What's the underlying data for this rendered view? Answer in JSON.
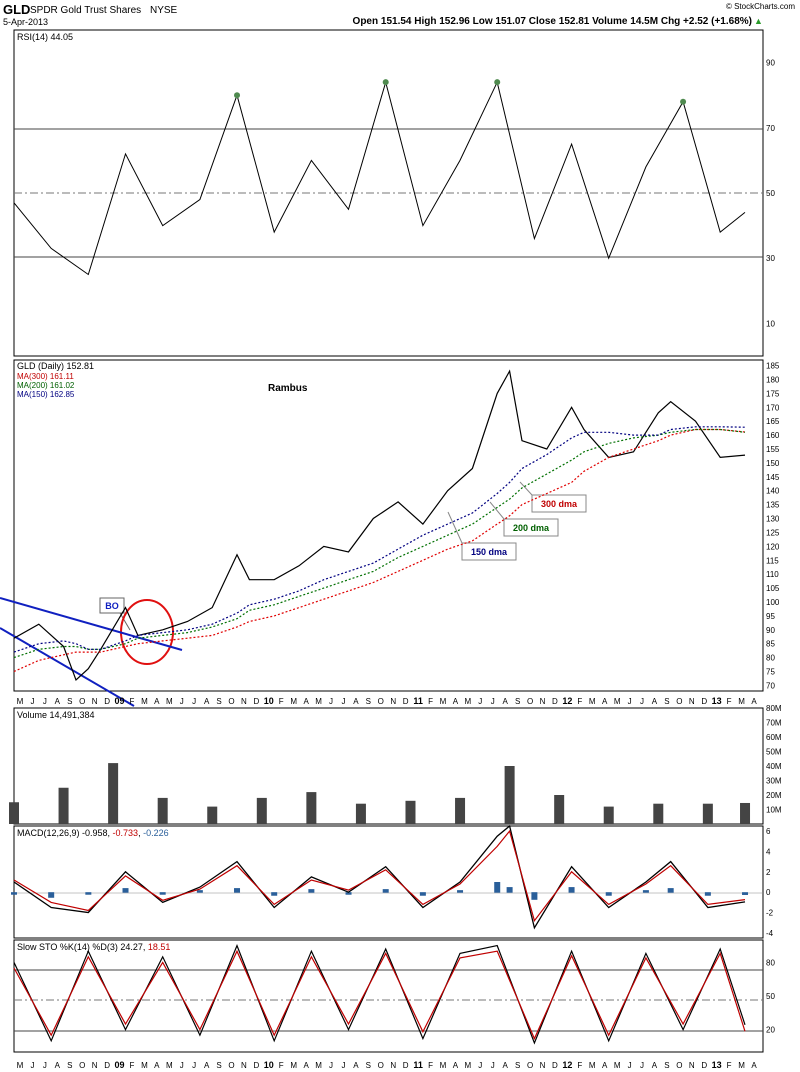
{
  "header": {
    "symbol": "GLD",
    "name": "SPDR Gold Trust Shares",
    "exchange": "NYSE",
    "date": "5-Apr-2013",
    "watermark": "© StockCharts.com",
    "quote": "Open 151.54 High 152.96 Low 151.07 Close 152.81 Volume 14.5M Chg +2.52 (+1.68%)",
    "up_arrow": "▲"
  },
  "x_axis_labels": [
    "M",
    "J",
    "J",
    "A",
    "S",
    "O",
    "N",
    "D",
    "09",
    "F",
    "M",
    "A",
    "M",
    "J",
    "J",
    "A",
    "S",
    "O",
    "N",
    "D",
    "10",
    "F",
    "M",
    "A",
    "M",
    "J",
    "J",
    "A",
    "S",
    "O",
    "N",
    "D",
    "11",
    "F",
    "M",
    "A",
    "M",
    "J",
    "J",
    "A",
    "S",
    "O",
    "N",
    "D",
    "12",
    "F",
    "M",
    "A",
    "M",
    "J",
    "J",
    "A",
    "S",
    "O",
    "N",
    "D",
    "13",
    "F",
    "M",
    "A"
  ],
  "panels": {
    "rsi": {
      "label": "RSI(14) 44.05",
      "ticks": [
        "90",
        "70",
        "50",
        "30",
        "10"
      ]
    },
    "price": {
      "legend_title": "GLD (Daily) 152.81",
      "legend_ma300": "MA(300) 161.11",
      "legend_ma200": "MA(200) 161.02",
      "legend_ma150": "MA(150) 162.85",
      "ticks": [
        "185",
        "180",
        "175",
        "170",
        "165",
        "160",
        "155",
        "150",
        "145",
        "140",
        "135",
        "130",
        "125",
        "120",
        "115",
        "110",
        "105",
        "100",
        "95",
        "90",
        "85",
        "80",
        "75",
        "70"
      ],
      "annotation_author": "Rambus",
      "annotation_bo": "BO",
      "annotation_300": "300 dma",
      "annotation_200": "200 dma",
      "annotation_150": "150 dma"
    },
    "volume": {
      "label": "Volume 14,491,384",
      "ticks": [
        "80M",
        "70M",
        "60M",
        "50M",
        "40M",
        "30M",
        "20M",
        "10M"
      ]
    },
    "macd": {
      "label_prefix": "MACD(12,26,9) -0.958, ",
      "label_sig": "-0.733",
      "label_sep": ", ",
      "label_hist": "-0.226",
      "ticks": [
        "6",
        "4",
        "2",
        "0",
        "-2",
        "-4"
      ]
    },
    "sto": {
      "label_prefix": "Slow STO %K(14) %D(3) 24.27, ",
      "label_d": "18.51",
      "ticks": [
        "80",
        "50",
        "20"
      ]
    }
  },
  "colors": {
    "ma300": "#e00000",
    "ma200": "#007000",
    "ma150": "#000080",
    "trend": "#1020c0",
    "rsi_fill": "#4f8a4f",
    "macd_hist": "#2a5f9a",
    "grid": "#555555"
  },
  "chart_data": [
    {
      "type": "line",
      "title": "RSI(14)",
      "ylim": [
        0,
        100
      ],
      "reference_lines": [
        70,
        50,
        30
      ],
      "x": [
        "2008-05",
        "2008-08",
        "2008-11",
        "2009-02",
        "2009-05",
        "2009-08",
        "2009-11",
        "2010-02",
        "2010-05",
        "2010-08",
        "2010-11",
        "2011-02",
        "2011-05",
        "2011-08",
        "2011-11",
        "2012-02",
        "2012-05",
        "2012-08",
        "2012-11",
        "2013-02",
        "2013-04"
      ],
      "values": [
        47,
        33,
        25,
        62,
        40,
        48,
        80,
        38,
        60,
        45,
        84,
        40,
        60,
        84,
        36,
        65,
        30,
        58,
        78,
        38,
        44.05
      ]
    },
    {
      "type": "line",
      "title": "GLD (Daily)",
      "ylim": [
        68,
        187
      ],
      "x": [
        "2008-05",
        "2008-07",
        "2008-09",
        "2008-10",
        "2008-11",
        "2008-12",
        "2009-02",
        "2009-03",
        "2009-05",
        "2009-07",
        "2009-09",
        "2009-11",
        "2009-12",
        "2010-02",
        "2010-04",
        "2010-06",
        "2010-08",
        "2010-10",
        "2010-12",
        "2011-02",
        "2011-04",
        "2011-06",
        "2011-08",
        "2011-09",
        "2011-10",
        "2011-12",
        "2012-02",
        "2012-03",
        "2012-05",
        "2012-07",
        "2012-09",
        "2012-10",
        "2012-12",
        "2013-02",
        "2013-04"
      ],
      "series": [
        {
          "name": "GLD",
          "values": [
            87,
            92,
            84,
            72,
            76,
            83,
            98,
            88,
            90,
            93,
            98,
            117,
            108,
            108,
            113,
            120,
            118,
            130,
            136,
            128,
            140,
            148,
            175,
            183,
            158,
            155,
            170,
            162,
            152,
            154,
            168,
            172,
            165,
            152,
            152.81
          ]
        },
        {
          "name": "MA(300)",
          "values": [
            75,
            79,
            81,
            82,
            82,
            82,
            84,
            85,
            86,
            87,
            88,
            91,
            93,
            95,
            98,
            101,
            104,
            107,
            111,
            115,
            119,
            122,
            128,
            131,
            135,
            139,
            143,
            147,
            152,
            155,
            158,
            160,
            162,
            162,
            161.11
          ]
        },
        {
          "name": "MA(200)",
          "values": [
            80,
            83,
            84,
            84,
            83,
            83,
            85,
            87,
            88,
            89,
            91,
            94,
            97,
            99,
            102,
            105,
            108,
            111,
            116,
            120,
            124,
            128,
            134,
            137,
            141,
            146,
            151,
            154,
            157,
            159,
            160,
            161,
            162,
            162,
            161.02
          ]
        },
        {
          "name": "MA(150)",
          "values": [
            82,
            85,
            86,
            85,
            83,
            83,
            86,
            88,
            89,
            90,
            92,
            96,
            99,
            101,
            104,
            108,
            111,
            114,
            119,
            124,
            128,
            132,
            139,
            143,
            148,
            153,
            159,
            161,
            161,
            160,
            160,
            162,
            163,
            163,
            162.85
          ]
        }
      ]
    },
    {
      "type": "bar",
      "title": "Volume",
      "ylim": [
        0,
        80
      ],
      "unit": "M",
      "x": [
        "2008-05",
        "2008-09",
        "2009-01",
        "2009-05",
        "2009-09",
        "2010-01",
        "2010-05",
        "2010-09",
        "2011-01",
        "2011-05",
        "2011-09",
        "2012-01",
        "2012-05",
        "2012-09",
        "2013-01",
        "2013-04"
      ],
      "values": [
        15,
        25,
        42,
        18,
        12,
        18,
        22,
        14,
        16,
        18,
        40,
        20,
        12,
        14,
        14,
        14.5
      ]
    },
    {
      "type": "line",
      "title": "MACD(12,26,9)",
      "ylim": [
        -4.5,
        6.5
      ],
      "x": [
        "2008-05",
        "2008-08",
        "2008-11",
        "2009-02",
        "2009-05",
        "2009-08",
        "2009-11",
        "2010-02",
        "2010-05",
        "2010-08",
        "2010-11",
        "2011-02",
        "2011-05",
        "2011-08",
        "2011-09",
        "2011-11",
        "2012-02",
        "2012-05",
        "2012-08",
        "2012-10",
        "2013-01",
        "2013-04"
      ],
      "series": [
        {
          "name": "MACD",
          "values": [
            1,
            -1.5,
            -2,
            2,
            -1,
            0.5,
            3,
            -1.5,
            1.5,
            0,
            2.5,
            -1.5,
            1,
            5.5,
            6.5,
            -3.5,
            2.5,
            -1.5,
            1,
            3,
            -1.5,
            -0.958
          ]
        },
        {
          "name": "Signal",
          "values": [
            1.2,
            -1,
            -1.8,
            1.6,
            -0.8,
            0.3,
            2.6,
            -1.2,
            1.2,
            0.2,
            2.2,
            -1.2,
            0.8,
            4.5,
            6,
            -2.8,
            2,
            -1.2,
            0.8,
            2.6,
            -1.2,
            -0.733
          ]
        }
      ]
    },
    {
      "type": "line",
      "title": "Slow STO %K(14) %D(3)",
      "ylim": [
        0,
        100
      ],
      "reference_lines": [
        80,
        50,
        20
      ],
      "x": [
        "2008-05",
        "2008-08",
        "2008-11",
        "2009-02",
        "2009-05",
        "2009-08",
        "2009-11",
        "2010-02",
        "2010-05",
        "2010-08",
        "2010-11",
        "2011-02",
        "2011-05",
        "2011-08",
        "2011-11",
        "2012-02",
        "2012-05",
        "2012-08",
        "2012-11",
        "2013-02",
        "2013-04"
      ],
      "series": [
        {
          "name": "%K",
          "values": [
            80,
            10,
            90,
            20,
            85,
            15,
            95,
            10,
            90,
            20,
            92,
            12,
            88,
            95,
            8,
            90,
            10,
            88,
            20,
            92,
            24.27
          ]
        },
        {
          "name": "%D",
          "values": [
            75,
            15,
            85,
            25,
            80,
            20,
            90,
            15,
            85,
            25,
            88,
            18,
            84,
            90,
            12,
            86,
            15,
            84,
            25,
            88,
            18.51
          ]
        }
      ]
    }
  ]
}
